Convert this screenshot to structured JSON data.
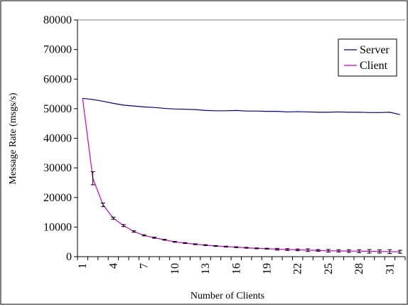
{
  "chart_data": {
    "type": "line",
    "title": "",
    "xlabel": "Number of Clients",
    "ylabel": "Message Rate (msgs/s)",
    "xlim": [
      1,
      32
    ],
    "ylim": [
      0,
      80000
    ],
    "x_ticks": [
      1,
      4,
      7,
      10,
      13,
      16,
      19,
      22,
      25,
      28,
      31
    ],
    "y_ticks": [
      0,
      10000,
      20000,
      30000,
      40000,
      50000,
      60000,
      70000,
      80000
    ],
    "grid": "y-top-line-only",
    "legend_position": "top-right",
    "x": [
      1,
      2,
      3,
      4,
      5,
      6,
      7,
      8,
      9,
      10,
      11,
      12,
      13,
      14,
      15,
      16,
      17,
      18,
      19,
      20,
      21,
      22,
      23,
      24,
      25,
      26,
      27,
      28,
      29,
      30,
      31,
      32
    ],
    "series": [
      {
        "name": "Server",
        "color": "#000080",
        "values": [
          53500,
          53100,
          52500,
          51800,
          51200,
          50900,
          50600,
          50400,
          50100,
          49900,
          49800,
          49700,
          49400,
          49300,
          49300,
          49400,
          49200,
          49200,
          49100,
          49100,
          48900,
          49000,
          48900,
          48800,
          48800,
          48900,
          48800,
          48800,
          48700,
          48700,
          48800,
          48000
        ]
      },
      {
        "name": "Client",
        "color": "#cc00cc",
        "values": [
          53500,
          26500,
          17500,
          13000,
          10500,
          8500,
          7200,
          6400,
          5700,
          5000,
          4600,
          4200,
          3900,
          3600,
          3400,
          3200,
          3000,
          2800,
          2700,
          2500,
          2400,
          2300,
          2200,
          2100,
          2000,
          1950,
          1900,
          1850,
          1800,
          1750,
          1700,
          1650
        ],
        "errors": [
          0,
          2200,
          600,
          350,
          350,
          250,
          200,
          200,
          150,
          150,
          150,
          150,
          150,
          150,
          150,
          150,
          150,
          150,
          150,
          300,
          300,
          300,
          450,
          300,
          450,
          400,
          450,
          500,
          600,
          550,
          650,
          500
        ]
      }
    ]
  }
}
